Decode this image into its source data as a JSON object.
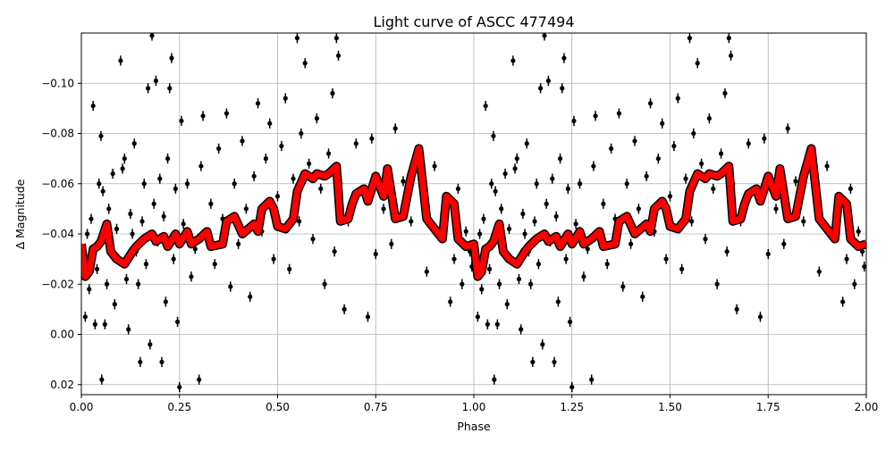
{
  "chart_data": {
    "type": "scatter",
    "title": "Light curve of ASCC 477494",
    "xlabel": "Phase",
    "ylabel": "Δ Magnitude",
    "xlim": [
      0,
      2
    ],
    "ylim": [
      0.024,
      -0.12
    ],
    "y_inverted": true,
    "grid": true,
    "phase_repeated": true,
    "xticks": [
      "0.00",
      "0.25",
      "0.50",
      "0.75",
      "1.00",
      "1.25",
      "1.50",
      "1.75",
      "2.00"
    ],
    "yticks": [
      "−0.10",
      "−0.08",
      "−0.06",
      "−0.04",
      "−0.02",
      "0.00",
      "0.02"
    ],
    "colors": {
      "points": "#000000",
      "curve": "#ff0000",
      "curve_edge": "#000000",
      "grid": "#b0b0b0"
    },
    "points_error": 0.002,
    "points": [
      [
        0.005,
        -0.03
      ],
      [
        0.01,
        -0.007
      ],
      [
        0.015,
        -0.04
      ],
      [
        0.02,
        -0.018
      ],
      [
        0.025,
        -0.046
      ],
      [
        0.03,
        -0.091
      ],
      [
        0.035,
        -0.004
      ],
      [
        0.04,
        -0.026
      ],
      [
        0.045,
        -0.06
      ],
      [
        0.05,
        -0.079
      ],
      [
        0.052,
        0.018
      ],
      [
        0.055,
        -0.057
      ],
      [
        0.06,
        -0.004
      ],
      [
        0.065,
        -0.02
      ],
      [
        0.07,
        -0.05
      ],
      [
        0.075,
        -0.033
      ],
      [
        0.08,
        -0.064
      ],
      [
        0.085,
        -0.012
      ],
      [
        0.09,
        -0.042
      ],
      [
        0.095,
        -0.03
      ],
      [
        0.1,
        -0.109
      ],
      [
        0.105,
        -0.066
      ],
      [
        0.11,
        -0.07
      ],
      [
        0.115,
        -0.022
      ],
      [
        0.12,
        -0.002
      ],
      [
        0.125,
        -0.048
      ],
      [
        0.13,
        -0.04
      ],
      [
        0.135,
        -0.076
      ],
      [
        0.14,
        -0.033
      ],
      [
        0.145,
        -0.02
      ],
      [
        0.15,
        0.011
      ],
      [
        0.155,
        -0.045
      ],
      [
        0.16,
        -0.06
      ],
      [
        0.165,
        -0.028
      ],
      [
        0.17,
        -0.098
      ],
      [
        0.175,
        0.004
      ],
      [
        0.18,
        -0.119
      ],
      [
        0.185,
        -0.052
      ],
      [
        0.19,
        -0.101
      ],
      [
        0.195,
        -0.037
      ],
      [
        0.2,
        -0.062
      ],
      [
        0.205,
        0.011
      ],
      [
        0.21,
        -0.047
      ],
      [
        0.215,
        -0.013
      ],
      [
        0.22,
        -0.07
      ],
      [
        0.225,
        -0.098
      ],
      [
        0.23,
        -0.11
      ],
      [
        0.235,
        -0.03
      ],
      [
        0.24,
        -0.058
      ],
      [
        0.245,
        -0.005
      ],
      [
        0.25,
        0.021
      ],
      [
        0.255,
        -0.085
      ],
      [
        0.26,
        -0.044
      ],
      [
        0.27,
        -0.06
      ],
      [
        0.28,
        -0.023
      ],
      [
        0.29,
        -0.034
      ],
      [
        0.3,
        0.018
      ],
      [
        0.305,
        -0.067
      ],
      [
        0.31,
        -0.087
      ],
      [
        0.32,
        -0.04
      ],
      [
        0.33,
        -0.052
      ],
      [
        0.34,
        -0.028
      ],
      [
        0.35,
        -0.074
      ],
      [
        0.36,
        -0.046
      ],
      [
        0.37,
        -0.088
      ],
      [
        0.38,
        -0.019
      ],
      [
        0.39,
        -0.06
      ],
      [
        0.4,
        -0.036
      ],
      [
        0.41,
        -0.077
      ],
      [
        0.42,
        -0.05
      ],
      [
        0.43,
        -0.015
      ],
      [
        0.44,
        -0.063
      ],
      [
        0.45,
        -0.092
      ],
      [
        0.46,
        -0.041
      ],
      [
        0.47,
        -0.07
      ],
      [
        0.48,
        -0.084
      ],
      [
        0.49,
        -0.03
      ],
      [
        0.5,
        -0.055
      ],
      [
        0.51,
        -0.075
      ],
      [
        0.52,
        -0.094
      ],
      [
        0.53,
        -0.026
      ],
      [
        0.54,
        -0.062
      ],
      [
        0.55,
        -0.118
      ],
      [
        0.555,
        -0.045
      ],
      [
        0.56,
        -0.08
      ],
      [
        0.57,
        -0.108
      ],
      [
        0.58,
        -0.068
      ],
      [
        0.59,
        -0.038
      ],
      [
        0.6,
        -0.086
      ],
      [
        0.61,
        -0.058
      ],
      [
        0.62,
        -0.02
      ],
      [
        0.63,
        -0.072
      ],
      [
        0.64,
        -0.096
      ],
      [
        0.645,
        -0.033
      ],
      [
        0.65,
        -0.118
      ],
      [
        0.655,
        -0.111
      ],
      [
        0.66,
        -0.06
      ],
      [
        0.67,
        -0.01
      ],
      [
        0.68,
        -0.045
      ],
      [
        0.7,
        -0.076
      ],
      [
        0.72,
        -0.056
      ],
      [
        0.73,
        -0.007
      ],
      [
        0.74,
        -0.078
      ],
      [
        0.75,
        -0.032
      ],
      [
        0.77,
        -0.05
      ],
      [
        0.79,
        -0.036
      ],
      [
        0.8,
        -0.082
      ],
      [
        0.82,
        -0.061
      ],
      [
        0.84,
        -0.045
      ],
      [
        0.86,
        -0.066
      ],
      [
        0.88,
        -0.025
      ],
      [
        0.9,
        -0.067
      ],
      [
        0.92,
        -0.048
      ],
      [
        0.94,
        -0.013
      ],
      [
        0.95,
        -0.03
      ],
      [
        0.96,
        -0.058
      ],
      [
        0.97,
        -0.02
      ],
      [
        0.98,
        -0.041
      ],
      [
        0.99,
        -0.033
      ],
      [
        0.995,
        -0.027
      ]
    ],
    "curve": {
      "phase": [
        0.0,
        0.01,
        0.02,
        0.03,
        0.04,
        0.05,
        0.065,
        0.075,
        0.09,
        0.11,
        0.13,
        0.14,
        0.16,
        0.18,
        0.19,
        0.21,
        0.22,
        0.24,
        0.25,
        0.27,
        0.28,
        0.3,
        0.32,
        0.33,
        0.36,
        0.37,
        0.39,
        0.41,
        0.44,
        0.45,
        0.46,
        0.48,
        0.49,
        0.5,
        0.52,
        0.54,
        0.55,
        0.57,
        0.59,
        0.6,
        0.62,
        0.63,
        0.65,
        0.66,
        0.68,
        0.69,
        0.7,
        0.72,
        0.73,
        0.75,
        0.77,
        0.78,
        0.8,
        0.82,
        0.84,
        0.86,
        0.88,
        0.89,
        0.92,
        0.93,
        0.95,
        0.96,
        0.98,
        1.0
      ],
      "magnitude": [
        -0.036,
        -0.023,
        -0.025,
        -0.034,
        -0.035,
        -0.037,
        -0.044,
        -0.033,
        -0.03,
        -0.028,
        -0.033,
        -0.035,
        -0.038,
        -0.04,
        -0.037,
        -0.039,
        -0.035,
        -0.04,
        -0.036,
        -0.041,
        -0.036,
        -0.038,
        -0.041,
        -0.035,
        -0.036,
        -0.045,
        -0.047,
        -0.04,
        -0.044,
        -0.041,
        -0.05,
        -0.053,
        -0.05,
        -0.043,
        -0.042,
        -0.046,
        -0.057,
        -0.064,
        -0.062,
        -0.064,
        -0.063,
        -0.064,
        -0.067,
        -0.045,
        -0.046,
        -0.052,
        -0.056,
        -0.058,
        -0.053,
        -0.063,
        -0.055,
        -0.066,
        -0.046,
        -0.047,
        -0.063,
        -0.074,
        -0.046,
        -0.044,
        -0.038,
        -0.055,
        -0.052,
        -0.038,
        -0.035,
        -0.036
      ]
    }
  }
}
